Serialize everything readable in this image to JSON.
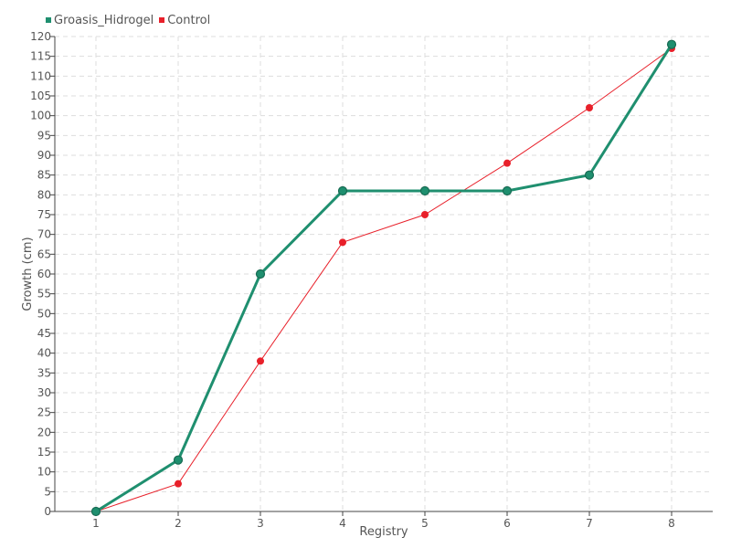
{
  "chart_data": {
    "type": "line",
    "categories": [
      "1",
      "2",
      "3",
      "4",
      "5",
      "6",
      "7",
      "8"
    ],
    "series": [
      {
        "name": "Groasis_Hidrogel",
        "color": "#1f8f6f",
        "values": [
          0,
          13,
          60,
          81,
          81,
          81,
          85,
          118
        ]
      },
      {
        "name": "Control",
        "color": "#e8202a",
        "values": [
          0,
          7,
          38,
          68,
          75,
          88,
          102,
          117
        ]
      }
    ],
    "xlabel": "Registry",
    "ylabel": "Growth (cm)",
    "ylim": [
      0,
      120
    ],
    "ytick_step": 5,
    "grid": true,
    "legend_position": "top-left"
  }
}
